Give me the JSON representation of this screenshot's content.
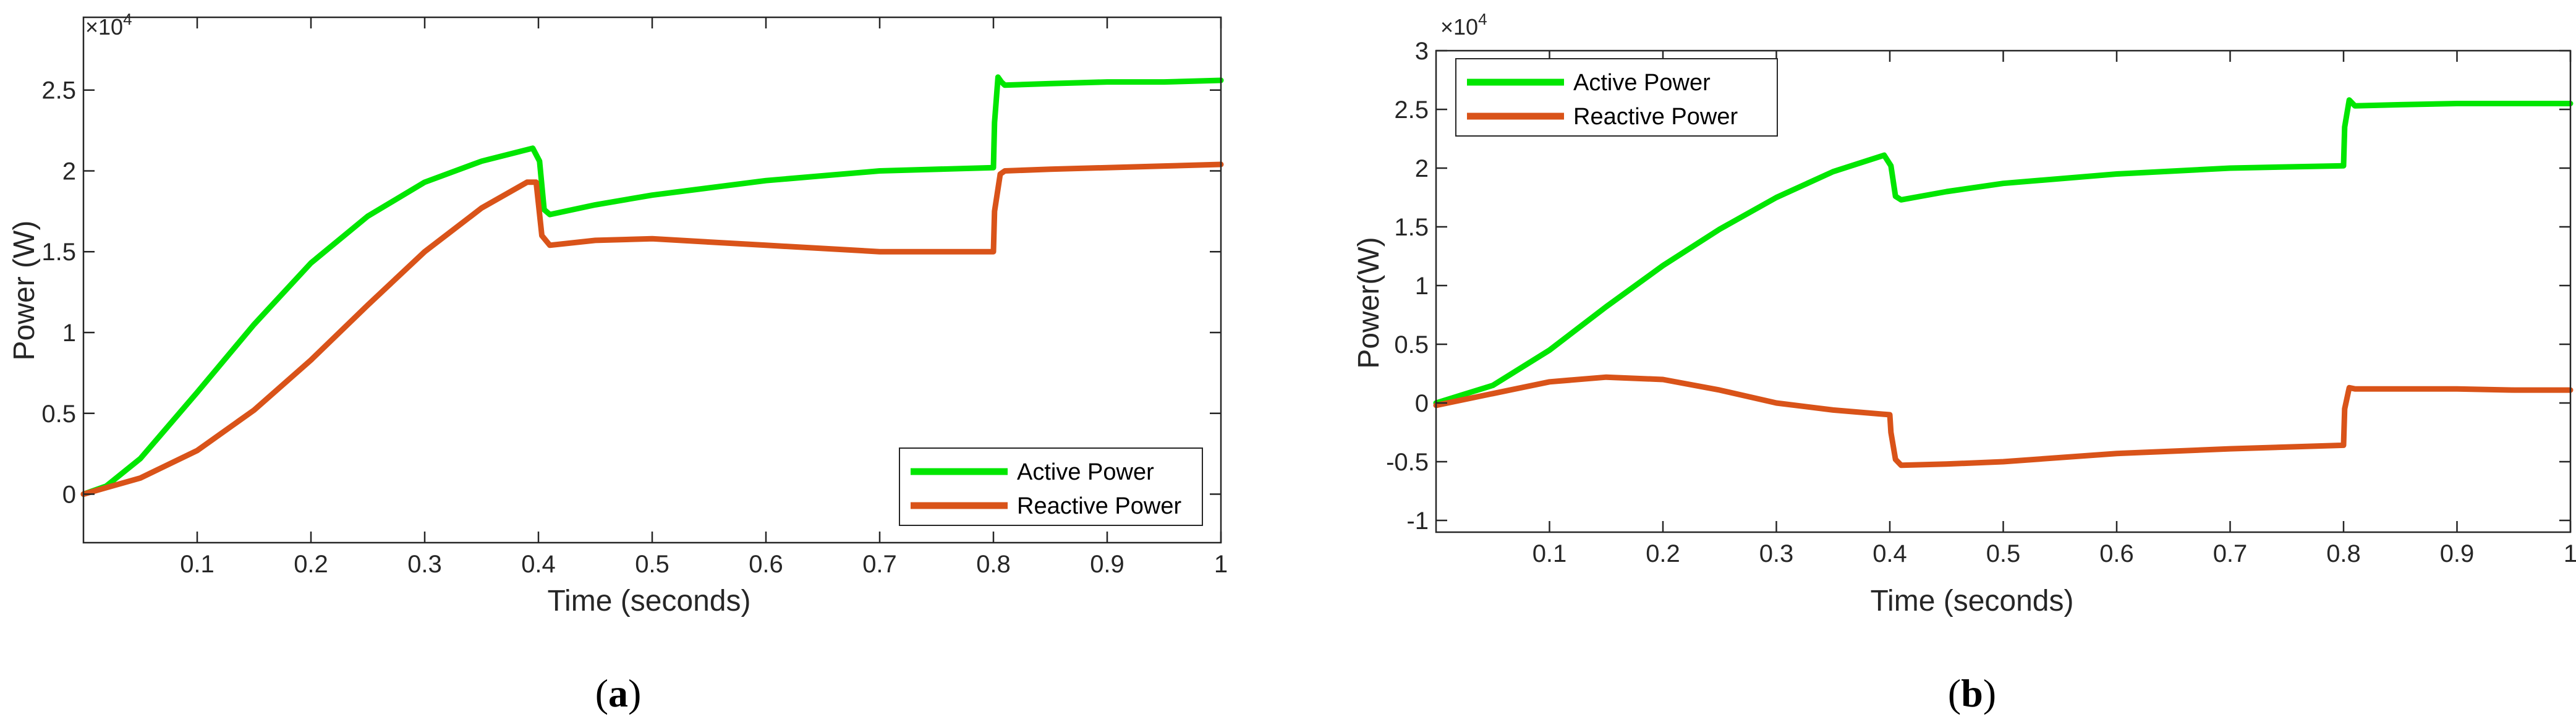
{
  "colors": {
    "active": "#00e600",
    "reactive": "#d95319",
    "axis": "#262626"
  },
  "chart_data": [
    {
      "type": "line",
      "panel": "a",
      "caption_prefix": "(",
      "caption_letter": "a",
      "caption_suffix": ")",
      "xlabel": "Time (seconds)",
      "ylabel": "Power (W)",
      "exponent_label": "×10",
      "exponent_power": "4",
      "xlim": [
        0,
        1
      ],
      "ylim": [
        -0.3,
        2.95
      ],
      "xticks": [
        0.1,
        0.2,
        0.3,
        0.4,
        0.5,
        0.6,
        0.7,
        0.8,
        0.9,
        1
      ],
      "xtick_labels": [
        "0.1",
        "0.2",
        "0.3",
        "0.4",
        "0.5",
        "0.6",
        "0.7",
        "0.8",
        "0.9",
        "1"
      ],
      "yticks": [
        0,
        0.5,
        1,
        1.5,
        2,
        2.5
      ],
      "ytick_labels": [
        "0",
        "0.5",
        "1",
        "1.5",
        "2",
        "2.5"
      ],
      "legend_position": "bottom-right",
      "series": [
        {
          "name": "Active Power",
          "color": "#00e600",
          "x": [
            0,
            0.02,
            0.05,
            0.1,
            0.15,
            0.2,
            0.25,
            0.3,
            0.35,
            0.395,
            0.401,
            0.405,
            0.41,
            0.45,
            0.5,
            0.6,
            0.7,
            0.8,
            0.801,
            0.804,
            0.807,
            0.81,
            0.85,
            0.9,
            0.95,
            1.0
          ],
          "y": [
            0,
            0.05,
            0.22,
            0.63,
            1.05,
            1.43,
            1.72,
            1.93,
            2.06,
            2.14,
            2.06,
            1.76,
            1.73,
            1.79,
            1.85,
            1.94,
            2.0,
            2.02,
            2.3,
            2.58,
            2.55,
            2.53,
            2.54,
            2.55,
            2.55,
            2.56
          ]
        },
        {
          "name": "Reactive Power",
          "color": "#d95319",
          "x": [
            0,
            0.02,
            0.05,
            0.1,
            0.15,
            0.2,
            0.25,
            0.3,
            0.35,
            0.39,
            0.398,
            0.403,
            0.41,
            0.45,
            0.5,
            0.6,
            0.7,
            0.8,
            0.801,
            0.806,
            0.81,
            0.85,
            0.9,
            0.95,
            1.0
          ],
          "y": [
            0,
            0.04,
            0.1,
            0.27,
            0.52,
            0.83,
            1.17,
            1.5,
            1.77,
            1.93,
            1.93,
            1.6,
            1.54,
            1.57,
            1.58,
            1.54,
            1.5,
            1.5,
            1.75,
            1.98,
            2.0,
            2.01,
            2.02,
            2.03,
            2.04
          ]
        }
      ]
    },
    {
      "type": "line",
      "panel": "b",
      "caption_prefix": "(",
      "caption_letter": "b",
      "caption_suffix": ")",
      "xlabel": "Time (seconds)",
      "ylabel": "Power(W)",
      "exponent_label": "×10",
      "exponent_power": "4",
      "xlim": [
        0,
        1
      ],
      "ylim": [
        -1.1,
        3
      ],
      "xticks": [
        0.1,
        0.2,
        0.3,
        0.4,
        0.5,
        0.6,
        0.7,
        0.8,
        0.9,
        1
      ],
      "xtick_labels": [
        "0.1",
        "0.2",
        "0.3",
        "0.4",
        "0.5",
        "0.6",
        "0.7",
        "0.8",
        "0.9",
        "1"
      ],
      "yticks": [
        -1,
        -0.5,
        0,
        0.5,
        1,
        1.5,
        2,
        2.5,
        3
      ],
      "ytick_labels": [
        "-1",
        "-0.5",
        "0",
        "0.5",
        "1",
        "1.5",
        "2",
        "2.5",
        "3"
      ],
      "legend_position": "top-left",
      "series": [
        {
          "name": "Active Power",
          "color": "#00e600",
          "x": [
            0,
            0.05,
            0.1,
            0.15,
            0.2,
            0.25,
            0.3,
            0.35,
            0.395,
            0.401,
            0.405,
            0.41,
            0.45,
            0.5,
            0.6,
            0.7,
            0.8,
            0.801,
            0.805,
            0.81,
            0.85,
            0.9,
            0.95,
            1.0
          ],
          "y": [
            0,
            0.15,
            0.45,
            0.82,
            1.17,
            1.48,
            1.75,
            1.97,
            2.11,
            2.02,
            1.76,
            1.73,
            1.8,
            1.87,
            1.95,
            2.0,
            2.02,
            2.35,
            2.58,
            2.53,
            2.54,
            2.55,
            2.55,
            2.55
          ]
        },
        {
          "name": "Reactive Power",
          "color": "#d95319",
          "x": [
            0,
            0.05,
            0.1,
            0.15,
            0.2,
            0.25,
            0.3,
            0.35,
            0.4,
            0.401,
            0.405,
            0.41,
            0.45,
            0.5,
            0.6,
            0.7,
            0.8,
            0.801,
            0.805,
            0.81,
            0.85,
            0.9,
            0.95,
            1.0
          ],
          "y": [
            -0.02,
            0.08,
            0.18,
            0.22,
            0.2,
            0.11,
            0.0,
            -0.06,
            -0.1,
            -0.25,
            -0.48,
            -0.53,
            -0.52,
            -0.5,
            -0.43,
            -0.39,
            -0.36,
            -0.05,
            0.13,
            0.12,
            0.12,
            0.12,
            0.11,
            0.11
          ]
        }
      ]
    }
  ]
}
